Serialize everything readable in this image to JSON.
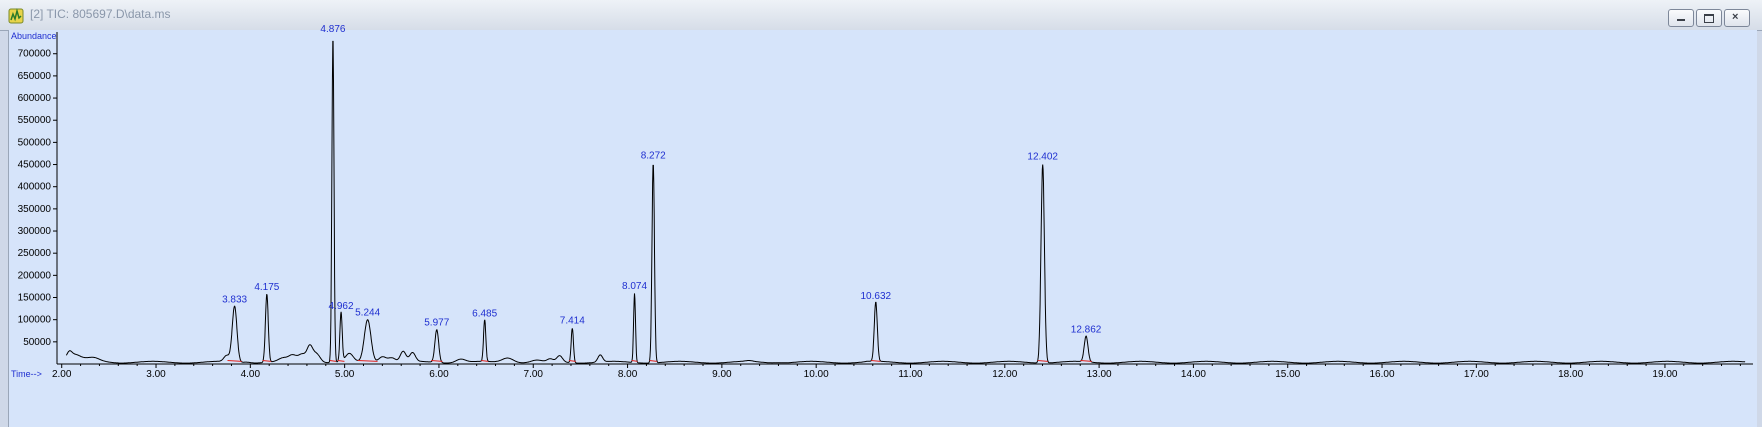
{
  "window": {
    "title": "[2] TIC: 805697.D\\data.ms",
    "icon": "chromatogram-app-icon",
    "buttons": {
      "minimize": "minimize-icon",
      "restore": "restore-icon",
      "close": "close-icon"
    }
  },
  "chart_data": {
    "type": "line",
    "ylabel": "Abundance",
    "xlabel": "Time-->",
    "xlim": [
      1.95,
      19.87
    ],
    "ylim": [
      0,
      740000
    ],
    "x_ticks": [
      "2.00",
      "3.00",
      "4.00",
      "5.00",
      "6.00",
      "7.00",
      "8.00",
      "9.00",
      "10.00",
      "11.00",
      "12.00",
      "13.00",
      "14.00",
      "15.00",
      "16.00",
      "17.00",
      "18.00",
      "19.00"
    ],
    "y_ticks": [
      "50000",
      "100000",
      "150000",
      "200000",
      "250000",
      "300000",
      "350000",
      "400000",
      "450000",
      "500000",
      "550000",
      "600000",
      "650000",
      "700000"
    ],
    "colors": {
      "trace": "#000000",
      "labels": "#1f2fd0",
      "baseline": "#e0201c",
      "background": "#d6e4fa"
    },
    "peaks": [
      {
        "label": "3.833",
        "rt": 3.833,
        "height": 130000
      },
      {
        "label": "4.175",
        "rt": 4.175,
        "height": 158000
      },
      {
        "label": "4.876",
        "rt": 4.876,
        "height": 740000
      },
      {
        "label": "4.962",
        "rt": 4.962,
        "height": 115000
      },
      {
        "label": "5.244",
        "rt": 5.244,
        "height": 100000
      },
      {
        "label": "5.977",
        "rt": 5.977,
        "height": 78000
      },
      {
        "label": "6.485",
        "rt": 6.485,
        "height": 98000
      },
      {
        "label": "7.414",
        "rt": 7.414,
        "height": 82000
      },
      {
        "label": "8.074",
        "rt": 8.074,
        "height": 160000
      },
      {
        "label": "8.272",
        "rt": 8.272,
        "height": 455000
      },
      {
        "label": "10.632",
        "rt": 10.632,
        "height": 138000
      },
      {
        "label": "12.402",
        "rt": 12.402,
        "height": 452000
      },
      {
        "label": "12.862",
        "rt": 12.862,
        "height": 62000
      }
    ]
  }
}
